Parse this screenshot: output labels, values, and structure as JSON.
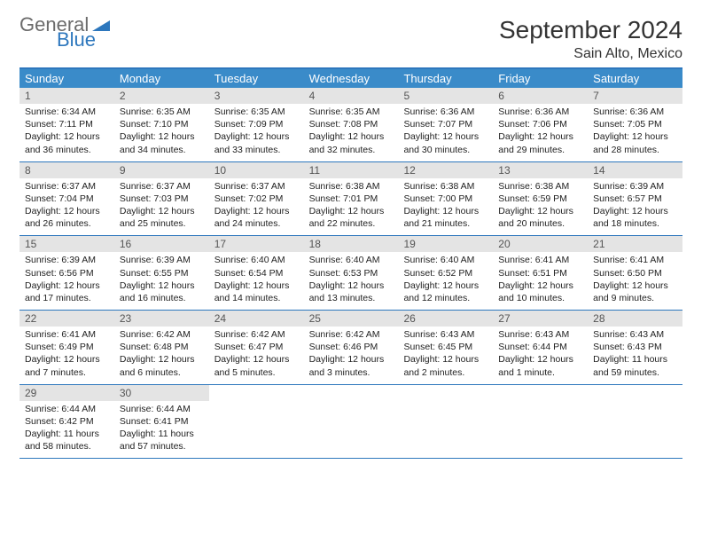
{
  "brand": {
    "line1": "General",
    "line2": "Blue"
  },
  "title": "September 2024",
  "location": "Sain Alto, Mexico",
  "colors": {
    "header_bar": "#3a8bc9",
    "border": "#2d77bd",
    "daynum_bg": "#e4e4e4",
    "brand_gray": "#6b6b6b",
    "brand_blue": "#2d77bd"
  },
  "weekdays": [
    "Sunday",
    "Monday",
    "Tuesday",
    "Wednesday",
    "Thursday",
    "Friday",
    "Saturday"
  ],
  "weeks": [
    [
      {
        "n": "1",
        "sunrise": "Sunrise: 6:34 AM",
        "sunset": "Sunset: 7:11 PM",
        "daylight": "Daylight: 12 hours and 36 minutes."
      },
      {
        "n": "2",
        "sunrise": "Sunrise: 6:35 AM",
        "sunset": "Sunset: 7:10 PM",
        "daylight": "Daylight: 12 hours and 34 minutes."
      },
      {
        "n": "3",
        "sunrise": "Sunrise: 6:35 AM",
        "sunset": "Sunset: 7:09 PM",
        "daylight": "Daylight: 12 hours and 33 minutes."
      },
      {
        "n": "4",
        "sunrise": "Sunrise: 6:35 AM",
        "sunset": "Sunset: 7:08 PM",
        "daylight": "Daylight: 12 hours and 32 minutes."
      },
      {
        "n": "5",
        "sunrise": "Sunrise: 6:36 AM",
        "sunset": "Sunset: 7:07 PM",
        "daylight": "Daylight: 12 hours and 30 minutes."
      },
      {
        "n": "6",
        "sunrise": "Sunrise: 6:36 AM",
        "sunset": "Sunset: 7:06 PM",
        "daylight": "Daylight: 12 hours and 29 minutes."
      },
      {
        "n": "7",
        "sunrise": "Sunrise: 6:36 AM",
        "sunset": "Sunset: 7:05 PM",
        "daylight": "Daylight: 12 hours and 28 minutes."
      }
    ],
    [
      {
        "n": "8",
        "sunrise": "Sunrise: 6:37 AM",
        "sunset": "Sunset: 7:04 PM",
        "daylight": "Daylight: 12 hours and 26 minutes."
      },
      {
        "n": "9",
        "sunrise": "Sunrise: 6:37 AM",
        "sunset": "Sunset: 7:03 PM",
        "daylight": "Daylight: 12 hours and 25 minutes."
      },
      {
        "n": "10",
        "sunrise": "Sunrise: 6:37 AM",
        "sunset": "Sunset: 7:02 PM",
        "daylight": "Daylight: 12 hours and 24 minutes."
      },
      {
        "n": "11",
        "sunrise": "Sunrise: 6:38 AM",
        "sunset": "Sunset: 7:01 PM",
        "daylight": "Daylight: 12 hours and 22 minutes."
      },
      {
        "n": "12",
        "sunrise": "Sunrise: 6:38 AM",
        "sunset": "Sunset: 7:00 PM",
        "daylight": "Daylight: 12 hours and 21 minutes."
      },
      {
        "n": "13",
        "sunrise": "Sunrise: 6:38 AM",
        "sunset": "Sunset: 6:59 PM",
        "daylight": "Daylight: 12 hours and 20 minutes."
      },
      {
        "n": "14",
        "sunrise": "Sunrise: 6:39 AM",
        "sunset": "Sunset: 6:57 PM",
        "daylight": "Daylight: 12 hours and 18 minutes."
      }
    ],
    [
      {
        "n": "15",
        "sunrise": "Sunrise: 6:39 AM",
        "sunset": "Sunset: 6:56 PM",
        "daylight": "Daylight: 12 hours and 17 minutes."
      },
      {
        "n": "16",
        "sunrise": "Sunrise: 6:39 AM",
        "sunset": "Sunset: 6:55 PM",
        "daylight": "Daylight: 12 hours and 16 minutes."
      },
      {
        "n": "17",
        "sunrise": "Sunrise: 6:40 AM",
        "sunset": "Sunset: 6:54 PM",
        "daylight": "Daylight: 12 hours and 14 minutes."
      },
      {
        "n": "18",
        "sunrise": "Sunrise: 6:40 AM",
        "sunset": "Sunset: 6:53 PM",
        "daylight": "Daylight: 12 hours and 13 minutes."
      },
      {
        "n": "19",
        "sunrise": "Sunrise: 6:40 AM",
        "sunset": "Sunset: 6:52 PM",
        "daylight": "Daylight: 12 hours and 12 minutes."
      },
      {
        "n": "20",
        "sunrise": "Sunrise: 6:41 AM",
        "sunset": "Sunset: 6:51 PM",
        "daylight": "Daylight: 12 hours and 10 minutes."
      },
      {
        "n": "21",
        "sunrise": "Sunrise: 6:41 AM",
        "sunset": "Sunset: 6:50 PM",
        "daylight": "Daylight: 12 hours and 9 minutes."
      }
    ],
    [
      {
        "n": "22",
        "sunrise": "Sunrise: 6:41 AM",
        "sunset": "Sunset: 6:49 PM",
        "daylight": "Daylight: 12 hours and 7 minutes."
      },
      {
        "n": "23",
        "sunrise": "Sunrise: 6:42 AM",
        "sunset": "Sunset: 6:48 PM",
        "daylight": "Daylight: 12 hours and 6 minutes."
      },
      {
        "n": "24",
        "sunrise": "Sunrise: 6:42 AM",
        "sunset": "Sunset: 6:47 PM",
        "daylight": "Daylight: 12 hours and 5 minutes."
      },
      {
        "n": "25",
        "sunrise": "Sunrise: 6:42 AM",
        "sunset": "Sunset: 6:46 PM",
        "daylight": "Daylight: 12 hours and 3 minutes."
      },
      {
        "n": "26",
        "sunrise": "Sunrise: 6:43 AM",
        "sunset": "Sunset: 6:45 PM",
        "daylight": "Daylight: 12 hours and 2 minutes."
      },
      {
        "n": "27",
        "sunrise": "Sunrise: 6:43 AM",
        "sunset": "Sunset: 6:44 PM",
        "daylight": "Daylight: 12 hours and 1 minute."
      },
      {
        "n": "28",
        "sunrise": "Sunrise: 6:43 AM",
        "sunset": "Sunset: 6:43 PM",
        "daylight": "Daylight: 11 hours and 59 minutes."
      }
    ],
    [
      {
        "n": "29",
        "sunrise": "Sunrise: 6:44 AM",
        "sunset": "Sunset: 6:42 PM",
        "daylight": "Daylight: 11 hours and 58 minutes."
      },
      {
        "n": "30",
        "sunrise": "Sunrise: 6:44 AM",
        "sunset": "Sunset: 6:41 PM",
        "daylight": "Daylight: 11 hours and 57 minutes."
      },
      {
        "empty": true
      },
      {
        "empty": true
      },
      {
        "empty": true
      },
      {
        "empty": true
      },
      {
        "empty": true
      }
    ]
  ]
}
